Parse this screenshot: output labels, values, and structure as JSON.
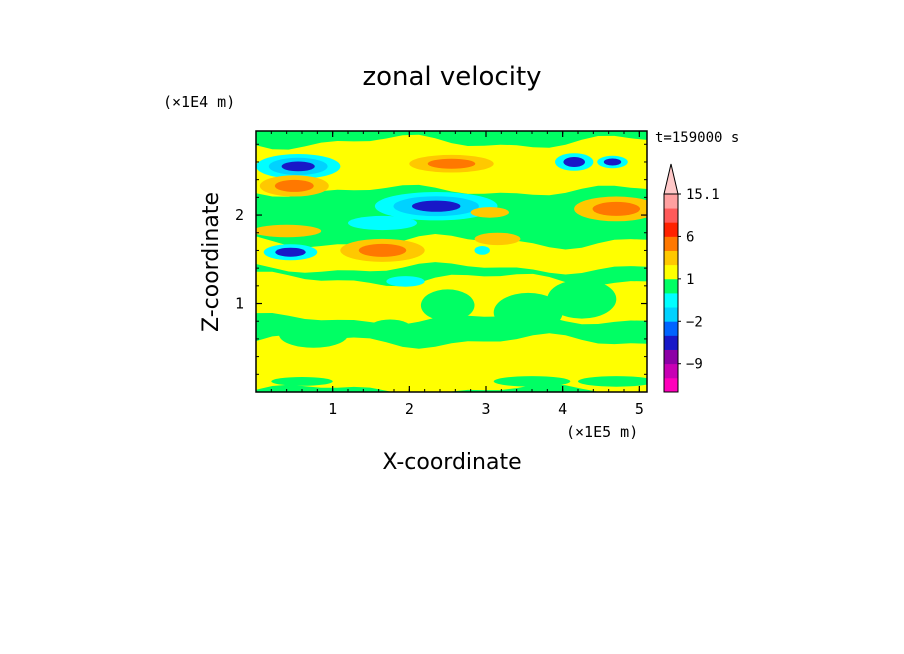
{
  "chart_data": {
    "type": "heatmap",
    "title": "zonal velocity",
    "xlabel": "X-coordinate",
    "ylabel": "Z-coordinate",
    "x_unit": "(×1E5 m)",
    "y_unit": "(×1E4 m)",
    "time_label": "t=159000 s",
    "xlim": [
      0,
      5.1
    ],
    "ylim": [
      0,
      2.95
    ],
    "x_ticks": [
      "1",
      "2",
      "3",
      "4",
      "5"
    ],
    "x_tick_values": [
      1,
      2,
      3,
      4,
      5
    ],
    "y_ticks": [
      "1",
      "2"
    ],
    "y_tick_values": [
      1,
      2
    ],
    "colorbar": {
      "extend": "max",
      "levels": [
        -15,
        -12,
        -9,
        -6,
        -3,
        -2,
        -1,
        0,
        1,
        2,
        3,
        6,
        9,
        12,
        15.1
      ],
      "colors": [
        "#ff00bb",
        "#c800b4",
        "#8c00a6",
        "#1818c8",
        "#0064ff",
        "#00d2ff",
        "#00ffff",
        "#00ff64",
        "#ffff00",
        "#ffc800",
        "#ff7800",
        "#ff2200",
        "#ff5a5a",
        "#ffa0a0"
      ],
      "extend_color": "#ffc8c8",
      "labels": [
        {
          "text": "15.1",
          "value": 15.1
        },
        {
          "text": "6",
          "value": 6
        },
        {
          "text": "1",
          "value": 1
        },
        {
          "text": "−2",
          "value": -2
        },
        {
          "text": "−9",
          "value": -9
        }
      ]
    },
    "field": {
      "background": "#00ff64",
      "base_color": "#ffff00",
      "bands": [
        {
          "z": 0.3,
          "thick": 0.55,
          "color": "#ffff00"
        },
        {
          "z": 1.05,
          "thick": 0.45,
          "color": "#ffff00"
        },
        {
          "z": 1.55,
          "thick": 0.3,
          "color": "#ffff00"
        },
        {
          "z": 2.55,
          "thick": 0.55,
          "color": "#ffff00"
        }
      ],
      "features": [
        {
          "x": 0.55,
          "z": 2.55,
          "rx": 0.55,
          "rz": 0.14,
          "levels": [
            "#00ffff",
            "#00d2ff",
            "#1818c8"
          ]
        },
        {
          "x": 0.5,
          "z": 2.33,
          "rx": 0.45,
          "rz": 0.12,
          "levels": [
            "#ffc800",
            "#ff7800"
          ]
        },
        {
          "x": 2.35,
          "z": 2.1,
          "rx": 0.8,
          "rz": 0.16,
          "levels": [
            "#00ffff",
            "#00d2ff",
            "#1818c8"
          ]
        },
        {
          "x": 2.55,
          "z": 2.58,
          "rx": 0.55,
          "rz": 0.1,
          "levels": [
            "#ffc800",
            "#ff7800"
          ]
        },
        {
          "x": 1.65,
          "z": 1.6,
          "rx": 0.55,
          "rz": 0.13,
          "levels": [
            "#ffc800",
            "#ff7800"
          ]
        },
        {
          "x": 1.65,
          "z": 1.91,
          "rx": 0.45,
          "rz": 0.08,
          "levels": [
            "#00ffff"
          ]
        },
        {
          "x": 0.45,
          "z": 1.58,
          "rx": 0.35,
          "rz": 0.09,
          "levels": [
            "#00ffff",
            "#1818c8"
          ]
        },
        {
          "x": 0.4,
          "z": 1.82,
          "rx": 0.45,
          "rz": 0.07,
          "levels": [
            "#ffc800"
          ]
        },
        {
          "x": 4.15,
          "z": 2.6,
          "rx": 0.25,
          "rz": 0.1,
          "levels": [
            "#00ffff",
            "#1818c8"
          ]
        },
        {
          "x": 4.65,
          "z": 2.6,
          "rx": 0.2,
          "rz": 0.07,
          "levels": [
            "#00ffff",
            "#1818c8"
          ]
        },
        {
          "x": 4.7,
          "z": 2.07,
          "rx": 0.55,
          "rz": 0.14,
          "levels": [
            "#ffc800",
            "#ff7800"
          ]
        },
        {
          "x": 3.15,
          "z": 1.73,
          "rx": 0.3,
          "rz": 0.07,
          "levels": [
            "#ffc800"
          ]
        },
        {
          "x": 3.05,
          "z": 2.03,
          "rx": 0.25,
          "rz": 0.06,
          "levels": [
            "#ffc800"
          ]
        },
        {
          "x": 1.95,
          "z": 1.25,
          "rx": 0.25,
          "rz": 0.06,
          "levels": [
            "#00ffff"
          ]
        },
        {
          "x": 2.95,
          "z": 1.6,
          "rx": 0.1,
          "rz": 0.05,
          "levels": [
            "#00ffff"
          ]
        },
        {
          "x": 4.25,
          "z": 1.05,
          "rx": 0.45,
          "rz": 0.22,
          "levels": [
            "#00ff64"
          ]
        },
        {
          "x": 3.55,
          "z": 0.9,
          "rx": 0.45,
          "rz": 0.22,
          "levels": [
            "#00ff64"
          ]
        },
        {
          "x": 0.75,
          "z": 0.65,
          "rx": 0.45,
          "rz": 0.15,
          "levels": [
            "#00ff64"
          ]
        },
        {
          "x": 1.75,
          "z": 0.7,
          "rx": 0.3,
          "rz": 0.12,
          "levels": [
            "#00ff64"
          ]
        },
        {
          "x": 2.5,
          "z": 0.98,
          "rx": 0.35,
          "rz": 0.18,
          "levels": [
            "#00ff64"
          ]
        },
        {
          "x": 3.6,
          "z": 0.12,
          "rx": 0.5,
          "rz": 0.06,
          "levels": [
            "#00ff64"
          ]
        },
        {
          "x": 4.7,
          "z": 0.12,
          "rx": 0.5,
          "rz": 0.06,
          "levels": [
            "#00ff64"
          ]
        },
        {
          "x": 0.6,
          "z": 0.12,
          "rx": 0.4,
          "rz": 0.05,
          "levels": [
            "#00ff64"
          ]
        }
      ]
    }
  }
}
